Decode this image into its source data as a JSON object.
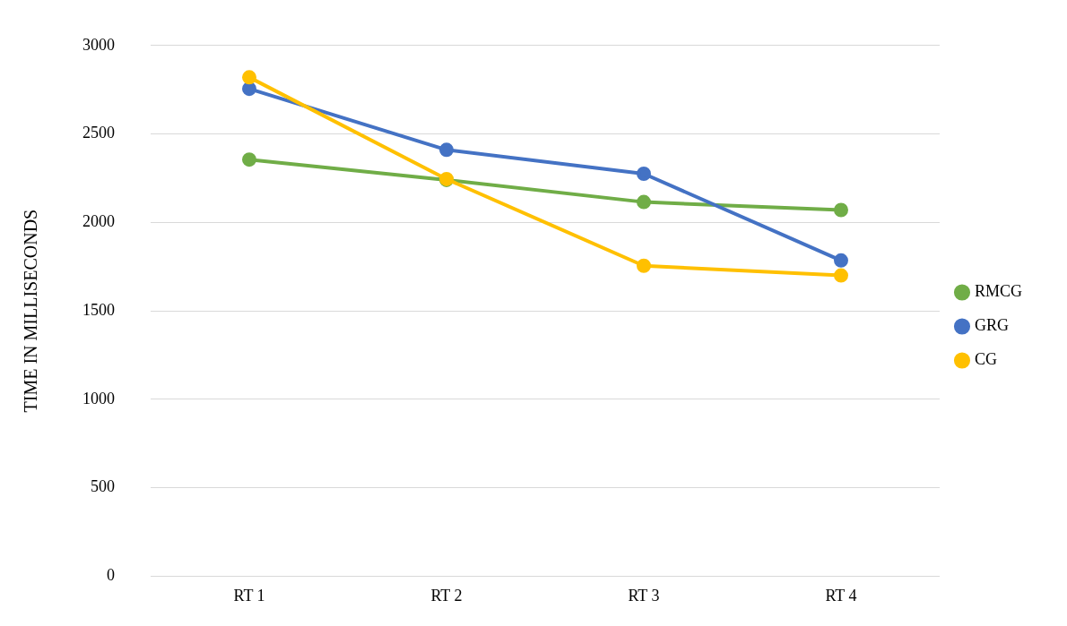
{
  "chart_data": {
    "type": "line",
    "ylabel": "TIME IN MILLISECONDS",
    "categories": [
      "RT 1",
      "RT 2",
      "RT 3",
      "RT 4"
    ],
    "series": [
      {
        "name": "RMCG",
        "color": "#70ad47",
        "values": [
          2355,
          2240,
          2115,
          2070
        ]
      },
      {
        "name": "GRG",
        "color": "#4472c4",
        "values": [
          2755,
          2410,
          2275,
          1785
        ]
      },
      {
        "name": "CG",
        "color": "#ffc000",
        "values": [
          2820,
          2245,
          1755,
          1700
        ]
      }
    ],
    "ylim": [
      0,
      3000
    ],
    "yticks": [
      0,
      500,
      1000,
      1500,
      2000,
      2500,
      3000
    ],
    "grid": "y",
    "legend": "right",
    "marker": "circle",
    "line_style": "solid"
  }
}
